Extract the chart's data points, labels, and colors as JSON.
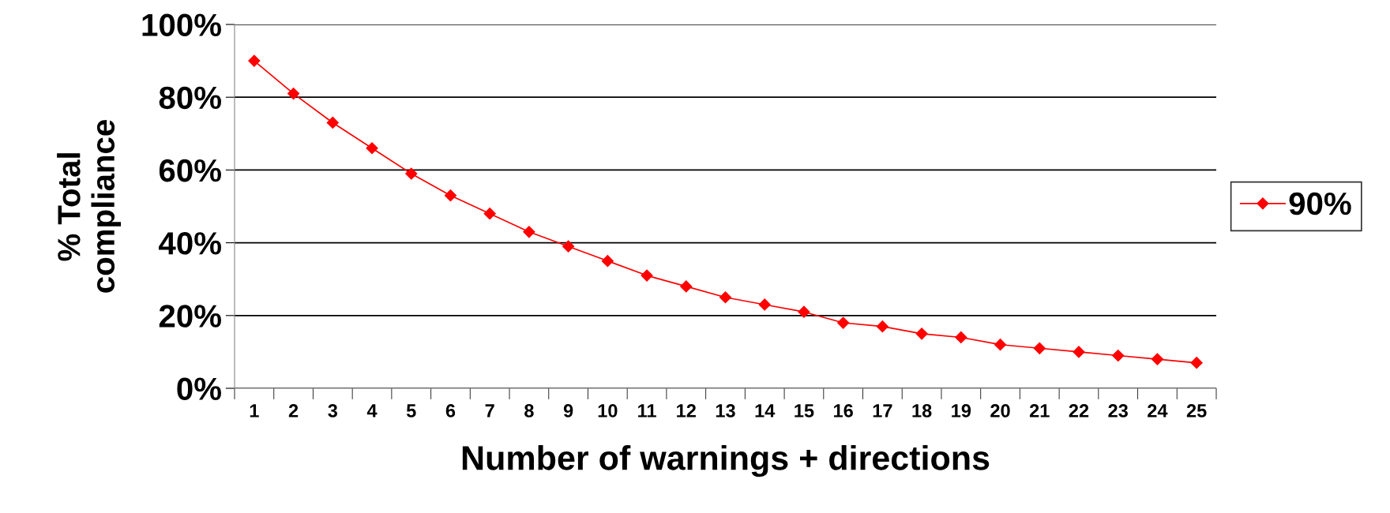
{
  "chart_data": {
    "type": "line",
    "xlabel": "Number of warnings + directions",
    "ylabel": "% Total\ncompliance",
    "categories": [
      "1",
      "2",
      "3",
      "4",
      "5",
      "6",
      "7",
      "8",
      "9",
      "10",
      "11",
      "12",
      "13",
      "14",
      "15",
      "16",
      "17",
      "18",
      "19",
      "20",
      "21",
      "22",
      "23",
      "24",
      "25"
    ],
    "series": [
      {
        "name": "90%",
        "color": "#ff0000",
        "values": [
          90,
          81,
          73,
          66,
          59,
          53,
          48,
          43,
          39,
          35,
          31,
          28,
          25,
          23,
          21,
          18,
          17,
          15,
          14,
          12,
          11,
          10,
          9,
          8,
          7
        ]
      }
    ],
    "ylim": [
      0,
      100
    ],
    "yticks": [
      {
        "value": 0,
        "label": "0%"
      },
      {
        "value": 20,
        "label": "20%"
      },
      {
        "value": 40,
        "label": "40%"
      },
      {
        "value": 60,
        "label": "60%"
      },
      {
        "value": 80,
        "label": "80%"
      },
      {
        "value": 100,
        "label": "100%"
      }
    ],
    "grid": "y",
    "legend": "right",
    "marker": "diamond",
    "line_style": "solid"
  }
}
